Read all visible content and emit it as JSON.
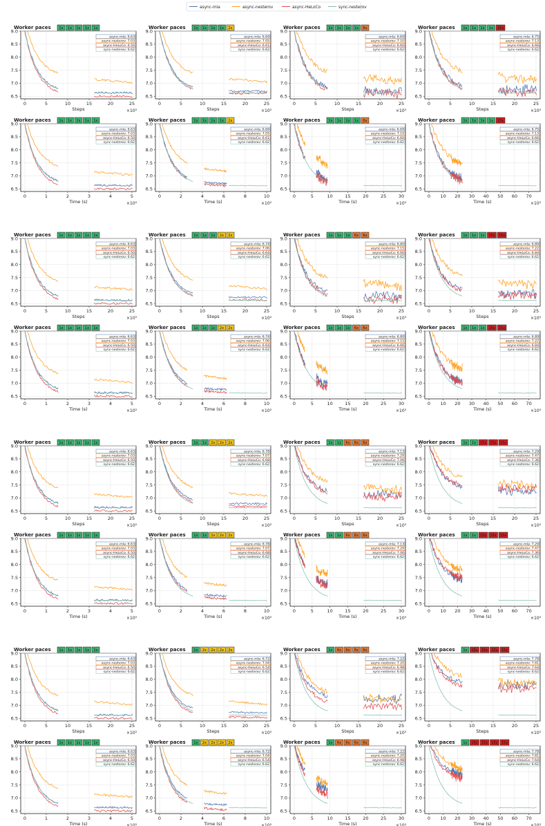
{
  "figure": {
    "legend": {
      "placement": "top-center",
      "entries": [
        {
          "name": "async-mla",
          "color": "#4c72b0"
        },
        {
          "name": "async-nesterov",
          "color": "#ff9f1c"
        },
        {
          "name": "async-HeLoCo",
          "color": "#e24a4a"
        },
        {
          "name": "sync-nesterov",
          "color": "#7fbfb0"
        }
      ]
    },
    "pace_colors": {
      "1x": "#3cb371",
      "2x": "#f0c419",
      "6x": "#e07b39",
      "15x": "#cc2222"
    },
    "panel_title": "Worker paces",
    "xlabels": {
      "steps": "Steps",
      "time": "Time (s)"
    },
    "exponent_label": "×10³",
    "ylim": [
      6.4,
      9.0
    ],
    "yticks": [
      "6.5",
      "7.0",
      "7.5",
      "8.0",
      "8.5",
      "9.0"
    ]
  },
  "chart_data": [
    {
      "type": "line",
      "row": 0,
      "col": 0,
      "xaxis": "steps",
      "paces": [
        "1x",
        "1x",
        "1x",
        "1x",
        "1x"
      ],
      "final": {
        "async-mla": "6.63",
        "async-nesterov": "7.03",
        "async-HeLoCo": "6.50",
        "sync-nesterov": "6.62"
      }
    },
    {
      "type": "line",
      "row": 0,
      "col": 1,
      "xaxis": "steps",
      "paces": [
        "1x",
        "1x",
        "1x",
        "1x",
        "2x"
      ],
      "final": {
        "async-mla": "6.69",
        "async-nesterov": "7.05",
        "async-HeLoCo": "6.61",
        "sync-nesterov": "6.62"
      }
    },
    {
      "type": "line",
      "row": 0,
      "col": 2,
      "xaxis": "steps",
      "paces": [
        "1x",
        "1x",
        "1x",
        "1x",
        "6x"
      ],
      "final": {
        "async-mla": "6.69",
        "async-nesterov": "7.10",
        "async-HeLoCo": "6.60",
        "sync-nesterov": "6.62"
      }
    },
    {
      "type": "line",
      "row": 0,
      "col": 3,
      "xaxis": "steps",
      "paces": [
        "1x",
        "1x",
        "1x",
        "1x",
        "15x"
      ],
      "final": {
        "async-mla": "6.75",
        "async-nesterov": "7.13",
        "async-HeLoCo": "6.66",
        "sync-nesterov": "6.62"
      }
    },
    {
      "type": "line",
      "row": 1,
      "col": 0,
      "xaxis": "time",
      "paces": [
        "1x",
        "1x",
        "1x",
        "1x",
        "1x"
      ],
      "final": {
        "async-mla": "6.63",
        "async-nesterov": "7.03",
        "async-HeLoCo": "6.50",
        "sync-nesterov": "6.62"
      }
    },
    {
      "type": "line",
      "row": 1,
      "col": 1,
      "xaxis": "time",
      "paces": [
        "1x",
        "1x",
        "1x",
        "1x",
        "2x"
      ],
      "final": {
        "async-mla": "6.69",
        "async-nesterov": "7.05",
        "async-HeLoCo": "6.61",
        "sync-nesterov": "6.62"
      }
    },
    {
      "type": "line",
      "row": 1,
      "col": 2,
      "xaxis": "time",
      "paces": [
        "1x",
        "1x",
        "1x",
        "1x",
        "6x"
      ],
      "final": {
        "async-mla": "6.69",
        "async-nesterov": "7.10",
        "async-HeLoCo": "6.60",
        "sync-nesterov": "6.62"
      }
    },
    {
      "type": "line",
      "row": 1,
      "col": 3,
      "xaxis": "time",
      "paces": [
        "1x",
        "1x",
        "1x",
        "1x",
        "15x"
      ],
      "final": {
        "async-mla": "6.75",
        "async-nesterov": "7.13",
        "async-HeLoCo": "6.66",
        "sync-nesterov": "6.62"
      }
    },
    {
      "type": "line",
      "row": 2,
      "col": 0,
      "xaxis": "steps",
      "paces": [
        "1x",
        "1x",
        "1x",
        "1x",
        "1x"
      ],
      "final": {
        "async-mla": "6.63",
        "async-nesterov": "7.03",
        "async-HeLoCo": "6.50",
        "sync-nesterov": "6.62"
      }
    },
    {
      "type": "line",
      "row": 2,
      "col": 1,
      "xaxis": "steps",
      "paces": [
        "1x",
        "1x",
        "1x",
        "2x",
        "2x"
      ],
      "final": {
        "async-mla": "6.74",
        "async-nesterov": "7.06",
        "async-HeLoCo": "6.64",
        "sync-nesterov": "6.62"
      }
    },
    {
      "type": "line",
      "row": 2,
      "col": 2,
      "xaxis": "steps",
      "paces": [
        "1x",
        "1x",
        "1x",
        "6x",
        "6x"
      ],
      "final": {
        "async-mla": "6.80",
        "async-nesterov": "7.15",
        "async-HeLoCo": "6.66",
        "sync-nesterov": "6.62"
      }
    },
    {
      "type": "line",
      "row": 2,
      "col": 3,
      "xaxis": "steps",
      "paces": [
        "1x",
        "1x",
        "1x",
        "15x",
        "15x"
      ],
      "final": {
        "async-mla": "6.89",
        "async-nesterov": "7.22",
        "async-HeLoCo": "6.84",
        "sync-nesterov": "6.62"
      }
    },
    {
      "type": "line",
      "row": 3,
      "col": 0,
      "xaxis": "time",
      "paces": [
        "1x",
        "1x",
        "1x",
        "1x",
        "1x"
      ],
      "final": {
        "async-mla": "6.63",
        "async-nesterov": "7.03",
        "async-HeLoCo": "6.50",
        "sync-nesterov": "6.62"
      }
    },
    {
      "type": "line",
      "row": 3,
      "col": 1,
      "xaxis": "time",
      "paces": [
        "1x",
        "1x",
        "1x",
        "2x",
        "2x"
      ],
      "final": {
        "async-mla": "6.74",
        "async-nesterov": "7.06",
        "async-HeLoCo": "6.64",
        "sync-nesterov": "6.62"
      }
    },
    {
      "type": "line",
      "row": 3,
      "col": 2,
      "xaxis": "time",
      "paces": [
        "1x",
        "1x",
        "1x",
        "6x",
        "6x"
      ],
      "final": {
        "async-mla": "6.80",
        "async-nesterov": "7.15",
        "async-HeLoCo": "6.66",
        "sync-nesterov": "6.62"
      }
    },
    {
      "type": "line",
      "row": 3,
      "col": 3,
      "xaxis": "time",
      "paces": [
        "1x",
        "1x",
        "1x",
        "15x",
        "15x"
      ],
      "final": {
        "async-mla": "6.89",
        "async-nesterov": "7.22",
        "async-HeLoCo": "6.84",
        "sync-nesterov": "6.62"
      }
    },
    {
      "type": "line",
      "row": 4,
      "col": 0,
      "xaxis": "steps",
      "paces": [
        "1x",
        "1x",
        "1x",
        "1x",
        "1x"
      ],
      "final": {
        "async-mla": "6.63",
        "async-nesterov": "7.03",
        "async-HeLoCo": "6.50",
        "sync-nesterov": "6.62"
      }
    },
    {
      "type": "line",
      "row": 4,
      "col": 1,
      "xaxis": "steps",
      "paces": [
        "1x",
        "1x",
        "2x",
        "2x",
        "2x"
      ],
      "final": {
        "async-mla": "6.78",
        "async-nesterov": "7.07",
        "async-HeLoCo": "6.68",
        "sync-nesterov": "6.62"
      }
    },
    {
      "type": "line",
      "row": 4,
      "col": 2,
      "xaxis": "steps",
      "paces": [
        "1x",
        "1x",
        "6x",
        "6x",
        "6x"
      ],
      "final": {
        "async-mla": "7.13",
        "async-nesterov": "7.29",
        "async-HeLoCo": "7.06",
        "sync-nesterov": "6.62"
      }
    },
    {
      "type": "line",
      "row": 4,
      "col": 3,
      "xaxis": "steps",
      "paces": [
        "1x",
        "1x",
        "15x",
        "15x",
        "15x"
      ],
      "final": {
        "async-mla": "7.29",
        "async-nesterov": "7.47",
        "async-HeLoCo": "7.36",
        "sync-nesterov": "6.62"
      }
    },
    {
      "type": "line",
      "row": 5,
      "col": 0,
      "xaxis": "time",
      "paces": [
        "1x",
        "1x",
        "1x",
        "1x",
        "1x"
      ],
      "final": {
        "async-mla": "6.63",
        "async-nesterov": "7.03",
        "async-HeLoCo": "6.50",
        "sync-nesterov": "6.62"
      }
    },
    {
      "type": "line",
      "row": 5,
      "col": 1,
      "xaxis": "time",
      "paces": [
        "1x",
        "1x",
        "2x",
        "2x",
        "2x"
      ],
      "final": {
        "async-mla": "6.78",
        "async-nesterov": "7.07",
        "async-HeLoCo": "6.68",
        "sync-nesterov": "6.62"
      }
    },
    {
      "type": "line",
      "row": 5,
      "col": 2,
      "xaxis": "time",
      "paces": [
        "1x",
        "1x",
        "6x",
        "6x",
        "6x"
      ],
      "final": {
        "async-mla": "7.13",
        "async-nesterov": "7.29",
        "async-HeLoCo": "7.06",
        "sync-nesterov": "6.62"
      }
    },
    {
      "type": "line",
      "row": 5,
      "col": 3,
      "xaxis": "time",
      "paces": [
        "1x",
        "1x",
        "15x",
        "15x",
        "15x"
      ],
      "final": {
        "async-mla": "7.29",
        "async-nesterov": "7.47",
        "async-HeLoCo": "7.36",
        "sync-nesterov": "6.62"
      }
    },
    {
      "type": "line",
      "row": 6,
      "col": 0,
      "xaxis": "steps",
      "paces": [
        "1x",
        "1x",
        "1x",
        "1x",
        "1x"
      ],
      "final": {
        "async-mla": "6.63",
        "async-nesterov": "7.03",
        "async-HeLoCo": "6.50",
        "sync-nesterov": "6.62"
      }
    },
    {
      "type": "line",
      "row": 6,
      "col": 1,
      "xaxis": "steps",
      "paces": [
        "1x",
        "2x",
        "2x",
        "2x",
        "2x"
      ],
      "final": {
        "async-mla": "6.72",
        "async-nesterov": "7.04",
        "async-HeLoCo": "6.54",
        "sync-nesterov": "6.62"
      }
    },
    {
      "type": "line",
      "row": 6,
      "col": 2,
      "xaxis": "steps",
      "paces": [
        "1x",
        "6x",
        "6x",
        "6x",
        "6x"
      ],
      "final": {
        "async-mla": "7.22",
        "async-nesterov": "7.20",
        "async-HeLoCo": "6.98",
        "sync-nesterov": "6.62"
      }
    },
    {
      "type": "line",
      "row": 6,
      "col": 3,
      "xaxis": "steps",
      "paces": [
        "1x",
        "15x",
        "15x",
        "15x",
        "15x"
      ],
      "final": {
        "async-mla": "7.78",
        "async-nesterov": "7.81",
        "async-HeLoCo": "7.64",
        "sync-nesterov": "6.62"
      }
    },
    {
      "type": "line",
      "row": 7,
      "col": 0,
      "xaxis": "time",
      "paces": [
        "1x",
        "1x",
        "1x",
        "1x",
        "1x"
      ],
      "final": {
        "async-mla": "6.63",
        "async-nesterov": "7.03",
        "async-HeLoCo": "6.50",
        "sync-nesterov": "6.62"
      }
    },
    {
      "type": "line",
      "row": 7,
      "col": 1,
      "xaxis": "time",
      "paces": [
        "1x",
        "2x",
        "2x",
        "2x",
        "2x"
      ],
      "final": {
        "async-mla": "6.72",
        "async-nesterov": "7.04",
        "async-HeLoCo": "6.54",
        "sync-nesterov": "6.62"
      }
    },
    {
      "type": "line",
      "row": 7,
      "col": 2,
      "xaxis": "time",
      "paces": [
        "1x",
        "6x",
        "6x",
        "6x",
        "6x"
      ],
      "final": {
        "async-mla": "7.22",
        "async-nesterov": "7.20",
        "async-HeLoCo": "6.98",
        "sync-nesterov": "6.62"
      }
    },
    {
      "type": "line",
      "row": 7,
      "col": 3,
      "xaxis": "time",
      "paces": [
        "1x",
        "15x",
        "15x",
        "15x",
        "15x"
      ],
      "final": {
        "async-mla": "7.78",
        "async-nesterov": "7.81",
        "async-HeLoCo": "7.64",
        "sync-nesterov": "6.62"
      }
    }
  ],
  "xaxes": {
    "steps": {
      "ticks": [
        "0",
        "5",
        "10",
        "15",
        "20",
        "25"
      ],
      "max": 25
    },
    "time_by_col": [
      {
        "ticks": [
          "0",
          "1",
          "2",
          "3",
          "4",
          "5"
        ],
        "max": 5
      },
      {
        "ticks": [
          "0",
          "2",
          "4",
          "6",
          "8",
          "10"
        ],
        "max": 10
      },
      {
        "ticks": [
          "0",
          "5",
          "10",
          "15",
          "20",
          "25",
          "30"
        ],
        "max": 30
      },
      {
        "ticks": [
          "0",
          "10",
          "20",
          "30",
          "40",
          "50",
          "60",
          "70"
        ],
        "max": 75
      }
    ]
  }
}
